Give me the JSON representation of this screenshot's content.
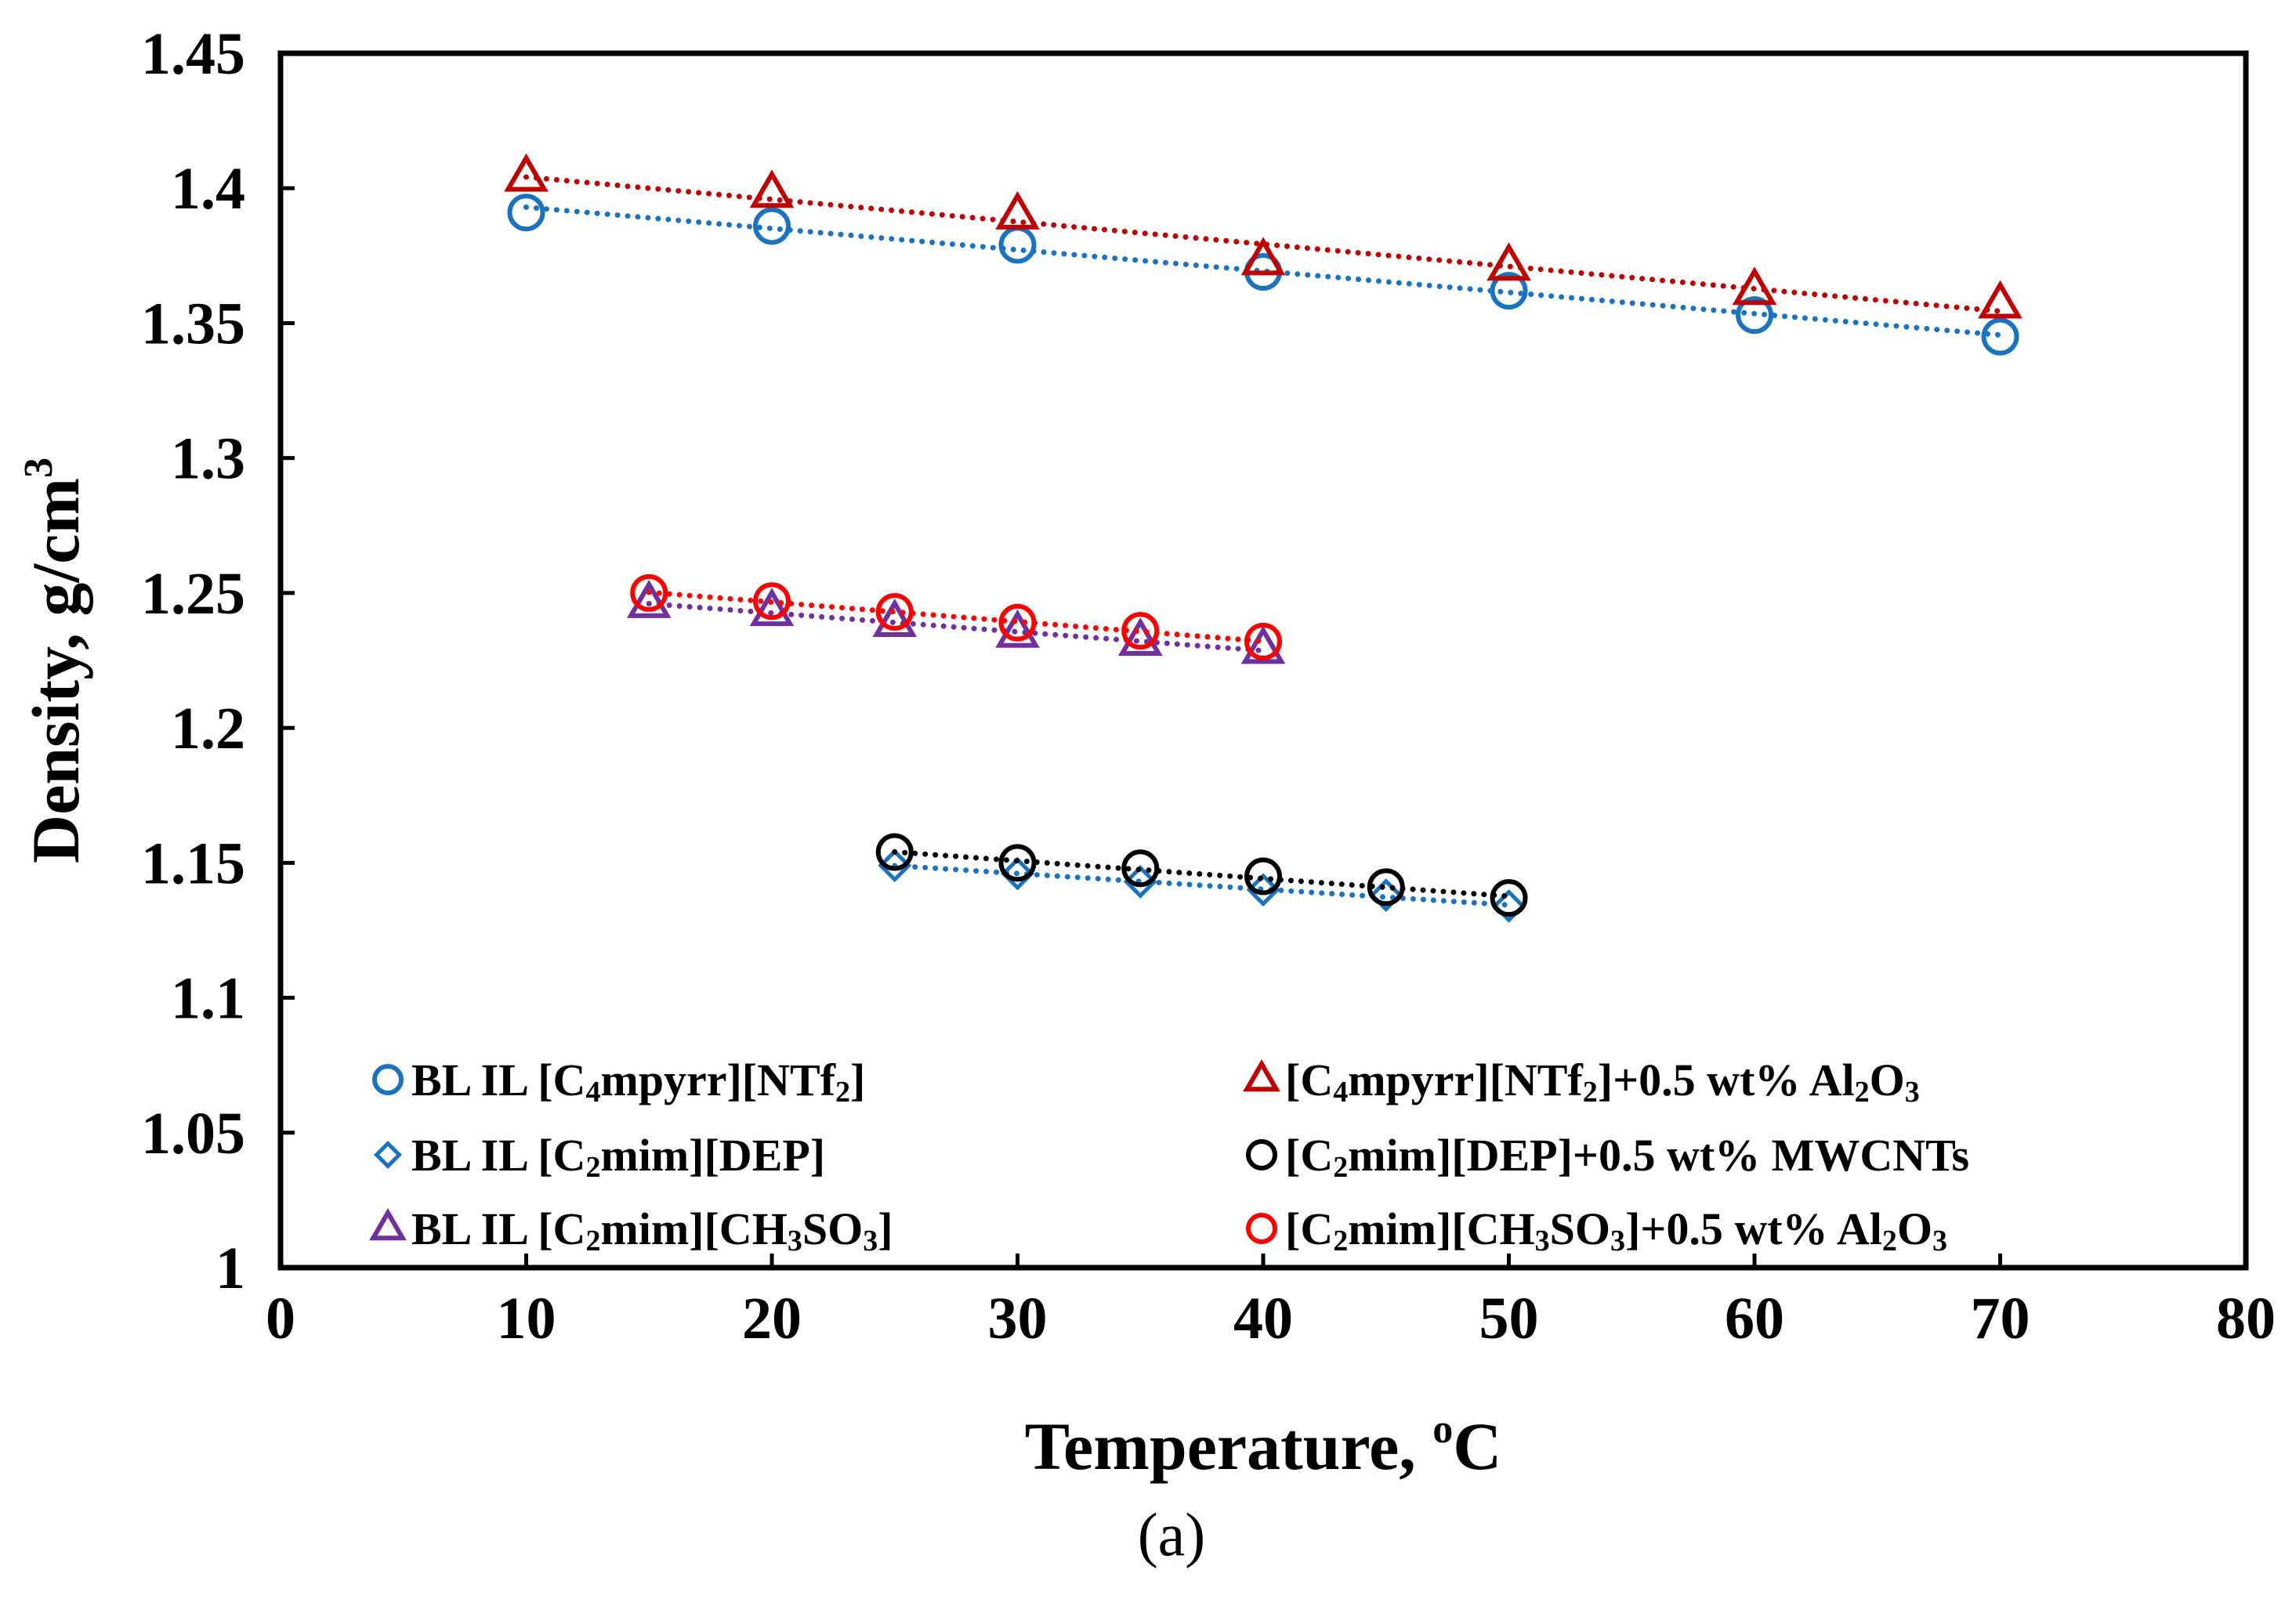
{
  "chart_data": {
    "type": "scatter",
    "title": "",
    "xlabel": "Temperature, ",
    "xlabel_sup": "o",
    "xlabel_unit": "C",
    "ylabel": "Density, g/cm",
    "ylabel_sup": "3",
    "caption": "(a)",
    "xlim": [
      0,
      80
    ],
    "ylim": [
      1.0,
      1.45
    ],
    "xticks": [
      "0",
      "10",
      "20",
      "30",
      "40",
      "50",
      "60",
      "70",
      "80"
    ],
    "xtick_values": [
      0,
      10,
      20,
      30,
      40,
      50,
      60,
      70,
      80
    ],
    "yticks": [
      "1",
      "1.05",
      "1.1",
      "1.15",
      "1.2",
      "1.25",
      "1.3",
      "1.35",
      "1.4",
      "1.45"
    ],
    "ytick_values": [
      1.0,
      1.05,
      1.1,
      1.15,
      1.2,
      1.25,
      1.3,
      1.35,
      1.4,
      1.45
    ],
    "grid": false,
    "legend_position": "bottom-inside",
    "series": [
      {
        "name": "BL IL [C4mpyrr][NTf2]",
        "legend_parts": [
          [
            "BL IL [C",
            false
          ],
          [
            "4",
            true
          ],
          [
            "mpyrr][NTf",
            false
          ],
          [
            "2",
            true
          ],
          [
            "]",
            false
          ]
        ],
        "marker": "circle",
        "color": "#1a73c0",
        "x": [
          10,
          20,
          30,
          40,
          50,
          60,
          70
        ],
        "y": [
          1.391,
          1.386,
          1.379,
          1.369,
          1.362,
          1.353,
          1.345
        ]
      },
      {
        "name": "BL IL [C2mim][DEP]",
        "legend_parts": [
          [
            "BL IL [C",
            false
          ],
          [
            "2",
            true
          ],
          [
            "mim][DEP]",
            false
          ]
        ],
        "marker": "diamond",
        "color": "#1a73c0",
        "x": [
          25,
          30,
          35,
          40,
          45,
          50
        ],
        "y": [
          1.149,
          1.146,
          1.143,
          1.14,
          1.138,
          1.134
        ]
      },
      {
        "name": "BL IL [C2mim][CH3SO3]",
        "legend_parts": [
          [
            "BL IL [C",
            false
          ],
          [
            "2",
            true
          ],
          [
            "mim][CH",
            false
          ],
          [
            "3",
            true
          ],
          [
            "SO",
            false
          ],
          [
            "3",
            true
          ],
          [
            "]",
            false
          ]
        ],
        "marker": "triangle",
        "color": "#7030a0",
        "x": [
          15,
          20,
          25,
          30,
          35,
          40
        ],
        "y": [
          1.246,
          1.243,
          1.239,
          1.235,
          1.232,
          1.229
        ]
      },
      {
        "name": "[C4mpyrr][NTf2]+0.5 wt% Al2O3",
        "legend_parts": [
          [
            "[C",
            false
          ],
          [
            "4",
            true
          ],
          [
            "mpyrr][NTf",
            false
          ],
          [
            "2",
            true
          ],
          [
            "]+0.5 wt% Al",
            false
          ],
          [
            "2",
            true
          ],
          [
            "O",
            false
          ],
          [
            "3",
            true
          ]
        ],
        "marker": "triangle",
        "color": "#c00000",
        "x": [
          10,
          20,
          30,
          40,
          50,
          60,
          70
        ],
        "y": [
          1.404,
          1.398,
          1.39,
          1.373,
          1.371,
          1.362,
          1.357
        ]
      },
      {
        "name": "[C2mim][DEP]+0.5 wt% MWCNTs",
        "legend_parts": [
          [
            "[C",
            false
          ],
          [
            "2",
            true
          ],
          [
            "mim][DEP]+0.5 wt% MWCNTs",
            false
          ]
        ],
        "marker": "circle",
        "color": "#000000",
        "x": [
          25,
          30,
          35,
          40,
          45,
          50
        ],
        "y": [
          1.154,
          1.15,
          1.148,
          1.145,
          1.141,
          1.137
        ]
      },
      {
        "name": "[C2mim][CH3SO3]+0.5 wt% Al2O3",
        "legend_parts": [
          [
            "[C",
            false
          ],
          [
            "2",
            true
          ],
          [
            "mim][CH",
            false
          ],
          [
            "3",
            true
          ],
          [
            "SO",
            false
          ],
          [
            "3",
            true
          ],
          [
            "]+0.5 wt% Al",
            false
          ],
          [
            "2",
            true
          ],
          [
            "O",
            false
          ],
          [
            "3",
            true
          ]
        ],
        "marker": "circle",
        "color": "#ff0000",
        "x": [
          15,
          20,
          25,
          30,
          35,
          40
        ],
        "y": [
          1.25,
          1.247,
          1.243,
          1.239,
          1.236,
          1.232
        ]
      }
    ],
    "legend_order": [
      0,
      3,
      1,
      4,
      2,
      5
    ],
    "trendline_style": "dotted"
  }
}
